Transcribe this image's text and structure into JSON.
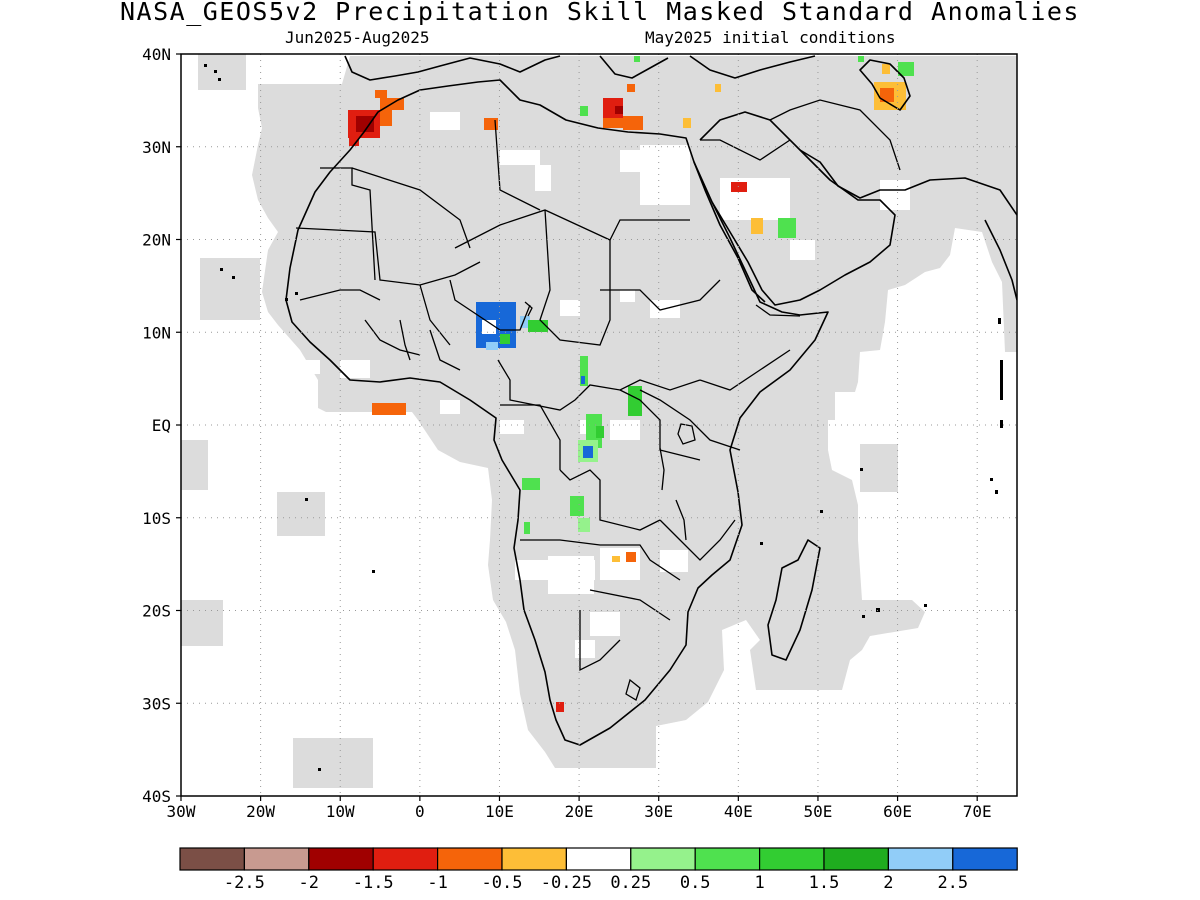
{
  "title": "NASA_GEOS5v2 Precipitation Skill Masked Standard Anomalies",
  "subtitle_left": "Jun2025-Aug2025",
  "subtitle_right": "May2025 initial conditions",
  "map": {
    "lon_range": [
      -30,
      75
    ],
    "lat_range": [
      -40,
      40
    ],
    "x_ticks": [
      "30W",
      "20W",
      "10W",
      "0",
      "10E",
      "20E",
      "30E",
      "40E",
      "50E",
      "60E",
      "70E"
    ],
    "y_ticks": [
      "40N",
      "30N",
      "20N",
      "10N",
      "EQ",
      "10S",
      "20S",
      "30S",
      "40S"
    ],
    "grid": true,
    "masked_color": "#dcdcdc"
  },
  "colorbar": {
    "colors": [
      "#7b4f46",
      "#c89a90",
      "#a00000",
      "#e01e10",
      "#f5640a",
      "#fdbe37",
      "#ffffff",
      "#95f28c",
      "#4fe14f",
      "#32cd32",
      "#1fad1f",
      "#91cdf8",
      "#1768d8"
    ],
    "labels": [
      "-2.5",
      "-2",
      "-1.5",
      "-1",
      "-0.5",
      "-0.25",
      "0.25",
      "0.5",
      "1",
      "1.5",
      "2",
      "2.5"
    ]
  },
  "anomaly_patches": [
    {
      "region": "Morocco",
      "lon": -5,
      "lat": 32,
      "value": -1.5
    },
    {
      "region": "Morocco east",
      "lon": -3,
      "lat": 34,
      "value": -1
    },
    {
      "region": "Tunisia",
      "lon": 9,
      "lat": 33,
      "value": -0.5
    },
    {
      "region": "Libya coast",
      "lon": 24,
      "lat": 33,
      "value": -1
    },
    {
      "region": "Aegean",
      "lon": 27,
      "lat": 38,
      "value": -0.5
    },
    {
      "region": "Iran",
      "lon": 60,
      "lat": 35,
      "value": -0.5
    },
    {
      "region": "Saudi Arabia",
      "lon": 40,
      "lat": 26,
      "value": -1
    },
    {
      "region": "Gulf of Guinea",
      "lon": -5,
      "lat": 1,
      "value": -1
    },
    {
      "region": "Nigeria",
      "lon": 9,
      "lat": 11,
      "value": 2.5
    },
    {
      "region": "Lake Chad",
      "lon": 14,
      "lat": 10,
      "value": 1.5
    },
    {
      "region": "Central Africa",
      "lon": 21,
      "lat": 6,
      "value": 1
    },
    {
      "region": "Congo",
      "lon": 22,
      "lat": -2,
      "value": 1
    },
    {
      "region": "Uganda",
      "lon": 28,
      "lat": 2,
      "value": 1
    },
    {
      "region": "Gabon",
      "lon": 14,
      "lat": -6,
      "value": 0.5
    },
    {
      "region": "Angola",
      "lon": 19,
      "lat": -9,
      "value": 0.5
    },
    {
      "region": "Zambia",
      "lon": 27,
      "lat": -14,
      "value": -0.5
    },
    {
      "region": "South Africa",
      "lon": 18,
      "lat": -31,
      "value": -1.5
    }
  ]
}
